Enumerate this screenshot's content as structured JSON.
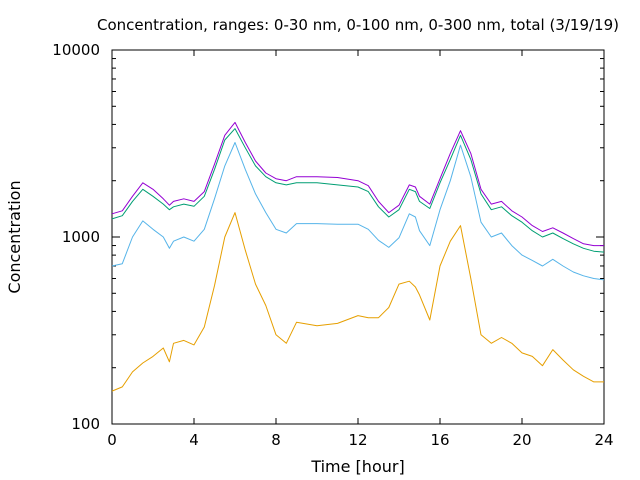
{
  "chart_data": {
    "type": "line",
    "title": "Concentration, ranges: 0-30 nm, 0-100 nm, 0-300 nm, total (3/19/19)",
    "xlabel": "Time [hour]",
    "ylabel": "Concentration",
    "xlim": [
      0,
      24
    ],
    "ylim": [
      100,
      10000
    ],
    "yscale": "log",
    "grid": false,
    "x_ticks": [
      0,
      4,
      8,
      12,
      16,
      20,
      24
    ],
    "x_tick_labels": [
      "0",
      "4",
      "8",
      "12",
      "16",
      "20",
      "24"
    ],
    "y_ticks": [
      100,
      1000,
      10000
    ],
    "y_tick_labels": [
      "100",
      "1000",
      "10000"
    ],
    "x": [
      0,
      0.5,
      1,
      1.5,
      2,
      2.5,
      2.8,
      3,
      3.5,
      4,
      4.5,
      5,
      5.5,
      6,
      6.5,
      7,
      7.5,
      8,
      8.5,
      9,
      10,
      11,
      12,
      12.5,
      13,
      13.5,
      14,
      14.5,
      14.8,
      15,
      15.5,
      16,
      16.5,
      17,
      17.5,
      18,
      18.5,
      19,
      19.5,
      20,
      20.5,
      21,
      21.5,
      22,
      22.5,
      23,
      23.5,
      24
    ],
    "series": [
      {
        "color": "#e69f00",
        "values": [
          150,
          158,
          190,
          212,
          230,
          255,
          215,
          270,
          280,
          265,
          330,
          550,
          1000,
          1350,
          850,
          560,
          430,
          300,
          270,
          350,
          335,
          345,
          380,
          370,
          370,
          420,
          560,
          580,
          540,
          490,
          360,
          700,
          950,
          1150,
          600,
          300,
          270,
          290,
          270,
          240,
          230,
          205,
          250,
          220,
          195,
          180,
          168,
          168
        ]
      },
      {
        "color": "#56b4e9",
        "values": [
          700,
          720,
          1000,
          1220,
          1100,
          1000,
          870,
          950,
          1000,
          950,
          1100,
          1600,
          2400,
          3200,
          2300,
          1700,
          1350,
          1100,
          1050,
          1180,
          1180,
          1170,
          1170,
          1100,
          960,
          880,
          990,
          1330,
          1280,
          1080,
          900,
          1400,
          2000,
          3100,
          2100,
          1200,
          1000,
          1050,
          900,
          800,
          750,
          700,
          760,
          700,
          650,
          620,
          600,
          590
        ]
      },
      {
        "color": "#009e73",
        "values": [
          1250,
          1300,
          1550,
          1800,
          1650,
          1500,
          1400,
          1450,
          1500,
          1460,
          1650,
          2300,
          3300,
          3800,
          3000,
          2400,
          2100,
          1950,
          1900,
          1950,
          1950,
          1900,
          1850,
          1750,
          1450,
          1280,
          1400,
          1800,
          1750,
          1550,
          1420,
          1950,
          2600,
          3500,
          2600,
          1700,
          1400,
          1450,
          1300,
          1200,
          1080,
          1000,
          1050,
          980,
          920,
          870,
          840,
          830
        ]
      },
      {
        "color": "#9400d3",
        "values": [
          1330,
          1380,
          1650,
          1950,
          1800,
          1600,
          1480,
          1550,
          1600,
          1550,
          1750,
          2450,
          3500,
          4100,
          3200,
          2550,
          2200,
          2050,
          2000,
          2100,
          2100,
          2080,
          2000,
          1880,
          1550,
          1350,
          1480,
          1900,
          1850,
          1650,
          1500,
          2050,
          2800,
          3700,
          2800,
          1800,
          1500,
          1550,
          1380,
          1280,
          1150,
          1070,
          1120,
          1050,
          980,
          920,
          900,
          900
        ]
      }
    ]
  }
}
